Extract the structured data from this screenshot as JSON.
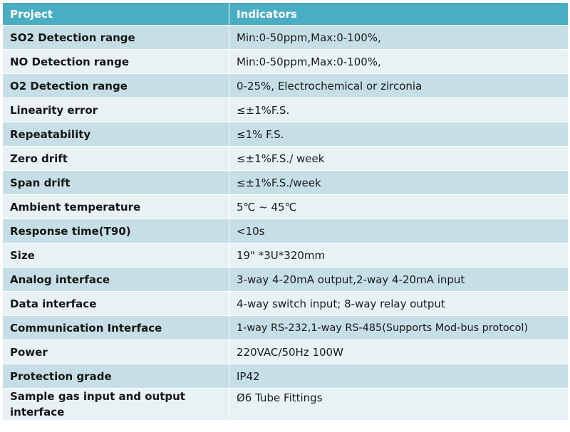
{
  "table": {
    "headers": {
      "project": "Project",
      "indicators": "Indicators"
    },
    "rows": [
      {
        "project": "SO2 Detection range",
        "indicator": "Min:0-50ppm,Max:0-100%,"
      },
      {
        "project": "NO Detection range",
        "indicator": "Min:0-50ppm,Max:0-100%,"
      },
      {
        "project": "O2 Detection range",
        "indicator": "0-25%, Electrochemical or zirconia"
      },
      {
        "project": "Linearity error",
        "indicator": "≤±1%F.S."
      },
      {
        "project": "Repeatability",
        "indicator": "≤1% F.S."
      },
      {
        "project": "Zero drift",
        "indicator": "≤±1%F.S./ week"
      },
      {
        "project": "Span drift",
        "indicator": "≤±1%F.S./week"
      },
      {
        "project": "Ambient temperature",
        "indicator": "5℃ ~ 45℃"
      },
      {
        "project": "Response time(T90)",
        "indicator": "<10s"
      },
      {
        "project": "Size",
        "indicator": "19\" *3U*320mm"
      },
      {
        "project": "Analog interface",
        "indicator": "3-way 4-20mA output,2-way 4-20mA input"
      },
      {
        "project": "Data interface",
        "indicator": "4-way switch input; 8-way relay output"
      },
      {
        "project": "Communication Interface",
        "indicator": "1-way RS-232,1-way RS-485(Supports Mod-bus protocol)"
      },
      {
        "project": "Power",
        "indicator": "220VAC/50Hz 100W"
      },
      {
        "project": "Protection grade",
        "indicator": "IP42"
      },
      {
        "project": "Sample gas input and output interface",
        "indicator": "Ø6 Tube Fittings"
      }
    ]
  },
  "colors": {
    "header_bg": "#49adc3",
    "header_text": "#ffffff",
    "row_dark": "#c6dfe6",
    "row_light": "#e8f2f5"
  }
}
